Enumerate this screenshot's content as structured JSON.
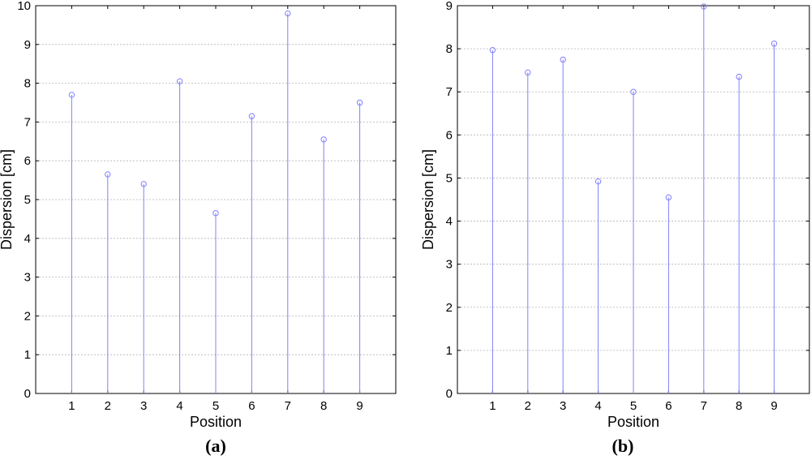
{
  "chart_data": [
    {
      "type": "stem",
      "caption": "(a)",
      "xlabel": "Position",
      "ylabel": "Dispersion [cm]",
      "xlim": [
        0,
        10
      ],
      "ylim": [
        0,
        10
      ],
      "xticks": [
        1,
        2,
        3,
        4,
        5,
        6,
        7,
        8,
        9
      ],
      "yticks": [
        0,
        1,
        2,
        3,
        4,
        5,
        6,
        7,
        8,
        9,
        10
      ],
      "grid": true,
      "marker_color": "#8080ff",
      "x": [
        1,
        2,
        3,
        4,
        5,
        6,
        7,
        8,
        9
      ],
      "values": [
        7.7,
        5.65,
        5.4,
        8.05,
        4.65,
        7.15,
        9.8,
        6.55,
        7.5
      ]
    },
    {
      "type": "stem",
      "caption": "(b)",
      "xlabel": "Position",
      "ylabel": "Dispersion [cm]",
      "xlim": [
        0,
        10
      ],
      "ylim": [
        0,
        9
      ],
      "xticks": [
        1,
        2,
        3,
        4,
        5,
        6,
        7,
        8,
        9
      ],
      "yticks": [
        0,
        1,
        2,
        3,
        4,
        5,
        6,
        7,
        8,
        9
      ],
      "grid": true,
      "marker_color": "#8080ff",
      "x": [
        1,
        2,
        3,
        4,
        5,
        6,
        7,
        8,
        9
      ],
      "values": [
        7.97,
        7.45,
        7.75,
        4.92,
        7.0,
        4.55,
        8.98,
        7.35,
        8.12
      ]
    }
  ]
}
